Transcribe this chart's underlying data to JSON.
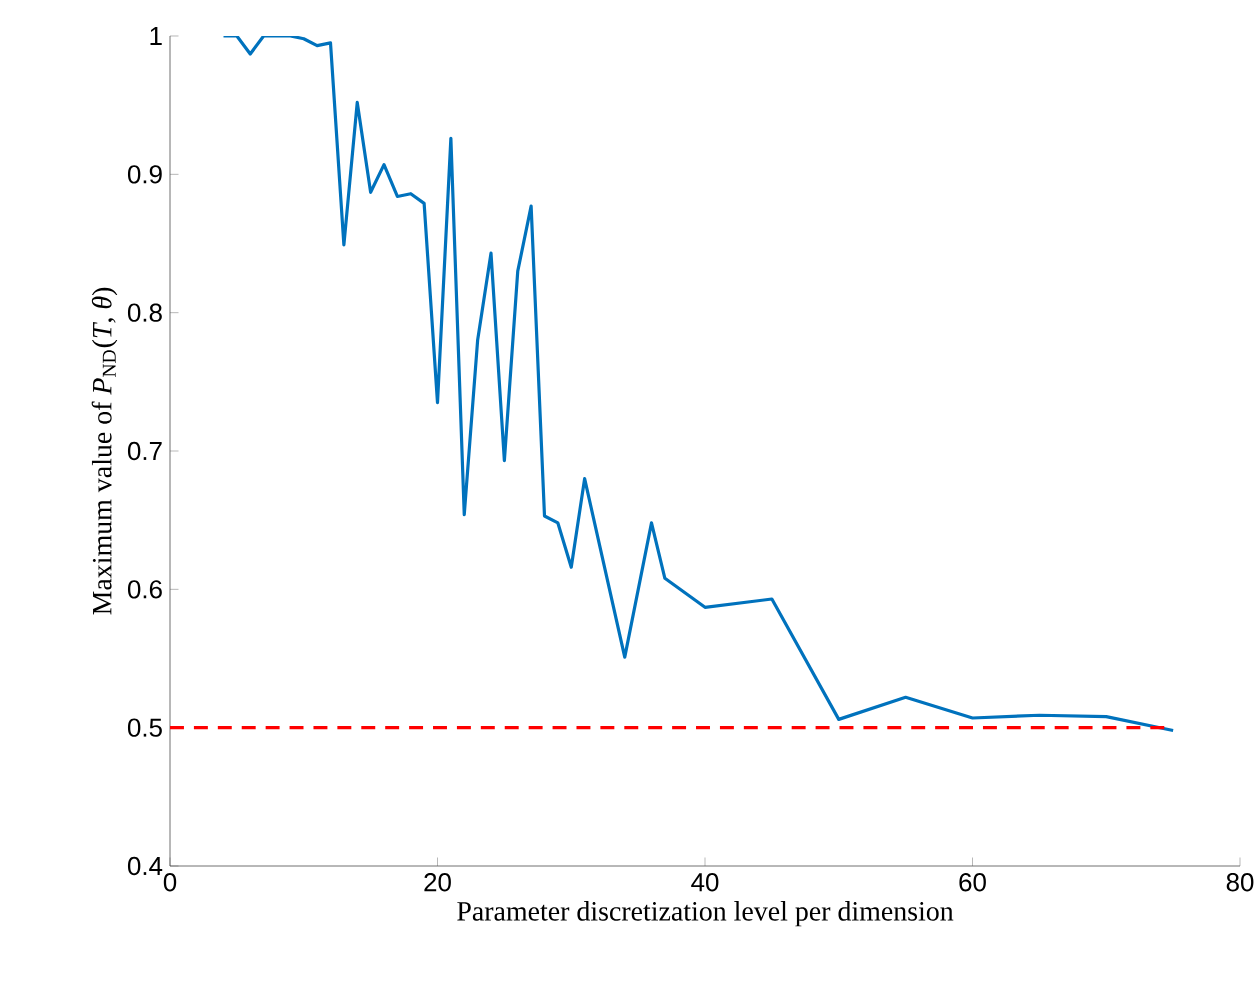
{
  "chart_data": {
    "type": "line",
    "xlabel": "Parameter discretization level per dimension",
    "ylabel": "Maximum value of *P*$_{ND}$(*T*, *θ*)",
    "xlim": [
      0,
      80
    ],
    "ylim": [
      0.4,
      1
    ],
    "xticks": [
      0,
      20,
      40,
      60,
      80
    ],
    "yticks": [
      0.4,
      0.5,
      0.6,
      0.7,
      0.8,
      0.9,
      1
    ],
    "grid": false,
    "marker": "none",
    "line_style": "solid",
    "series": [
      {
        "color": "#0072bd",
        "x": [
          4,
          5,
          6,
          7,
          8,
          9,
          10,
          11,
          12,
          13,
          14,
          15,
          16,
          17,
          18,
          19,
          20,
          21,
          22,
          23,
          24,
          25,
          26,
          27,
          28,
          29,
          30,
          31,
          34,
          36,
          37,
          40,
          45,
          50,
          55,
          60,
          65,
          70,
          75
        ],
        "values": [
          1.0,
          1.0,
          0.987,
          1.0,
          1.0,
          1.0,
          0.998,
          0.993,
          0.995,
          0.849,
          0.952,
          0.887,
          0.907,
          0.884,
          0.886,
          0.879,
          0.735,
          0.926,
          0.654,
          0.78,
          0.843,
          0.693,
          0.83,
          0.877,
          0.653,
          0.648,
          0.616,
          0.68,
          0.551,
          0.648,
          0.608,
          0.587,
          0.593,
          0.506,
          0.522,
          0.507,
          0.509,
          0.508,
          0.498
        ]
      }
    ],
    "ref_lines": [
      {
        "axis": "y",
        "value": 0.5,
        "color": "#ff0000",
        "line_style": "dashed"
      }
    ]
  }
}
